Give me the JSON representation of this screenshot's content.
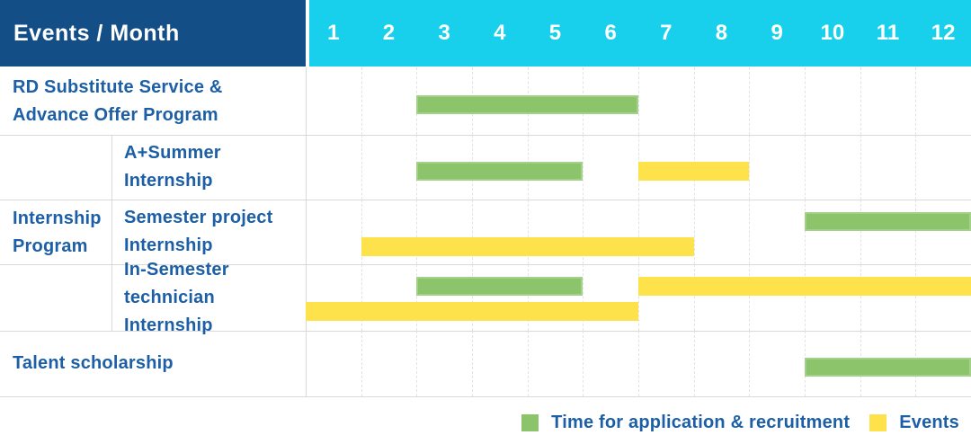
{
  "header": {
    "title": "Events / Month",
    "months": [
      "1",
      "2",
      "3",
      "4",
      "5",
      "6",
      "7",
      "8",
      "9",
      "10",
      "11",
      "12"
    ]
  },
  "colors": {
    "header_left_bg": "#144e86",
    "header_months_bg": "#18d0ec",
    "header_text": "#ffffff",
    "row_label_text": "#1d5fa6",
    "application_green": "#8bc46a",
    "events_yellow": "#fde24c",
    "grid_line": "#e3e3e3",
    "border_line": "#d9d9d9"
  },
  "chart_data": {
    "type": "gantt",
    "x_unit": "month",
    "x_ticks": [
      1,
      2,
      3,
      4,
      5,
      6,
      7,
      8,
      9,
      10,
      11,
      12
    ],
    "x_range": [
      1,
      12
    ],
    "grid": true,
    "legend_position": "bottom-right",
    "legend": [
      {
        "key": "application",
        "label": "Time for application & recruitment",
        "color": "#8bc46a"
      },
      {
        "key": "event",
        "label": "Events",
        "color": "#fde24c"
      }
    ],
    "groups": [
      {
        "id": "internship-program",
        "label": "Internship Program",
        "label_lines": [
          "Internship",
          "Program"
        ],
        "rows": [
          "a-plus-summer-internship",
          "semester-project-internship",
          "in-semester-technician-internship"
        ]
      }
    ],
    "rows": [
      {
        "id": "rd-substitute-service",
        "label": "RD Substitute Service & Advance Offer Program",
        "label_lines": [
          "RD Substitute Service &",
          "Advance Offer Program"
        ],
        "group": null,
        "lanes": 1,
        "bars": [
          {
            "kind": "application",
            "start_month": 3,
            "end_month": 6,
            "lane": 0
          }
        ]
      },
      {
        "id": "a-plus-summer-internship",
        "label": "A+Summer Internship",
        "label_lines": [
          "A+Summer",
          "Internship"
        ],
        "group": "internship-program",
        "lanes": 1,
        "bars": [
          {
            "kind": "application",
            "start_month": 3,
            "end_month": 5,
            "lane": 0
          },
          {
            "kind": "event",
            "start_month": 7,
            "end_month": 8,
            "lane": 0
          }
        ]
      },
      {
        "id": "semester-project-internship",
        "label": "Semester project Internship",
        "label_lines": [
          "Semester project",
          "Internship"
        ],
        "group": "internship-program",
        "lanes": 2,
        "bars": [
          {
            "kind": "application",
            "start_month": 10,
            "end_month": 12,
            "lane": 0
          },
          {
            "kind": "event",
            "start_month": 2,
            "end_month": 7,
            "lane": 1
          }
        ]
      },
      {
        "id": "in-semester-technician-internship",
        "label": "In-Semester technician Internship",
        "label_lines": [
          "In-Semester",
          "technician Internship"
        ],
        "group": "internship-program",
        "lanes": 2,
        "bars": [
          {
            "kind": "application",
            "start_month": 3,
            "end_month": 5,
            "lane": 0
          },
          {
            "kind": "event",
            "start_month": 7,
            "end_month": 12,
            "lane": 0
          },
          {
            "kind": "event",
            "start_month": 1,
            "end_month": 6,
            "lane": 1
          }
        ]
      },
      {
        "id": "talent-scholarship",
        "label": "Talent scholarship",
        "label_lines": [
          "Talent scholarship"
        ],
        "group": null,
        "lanes": 1,
        "bars": [
          {
            "kind": "application",
            "start_month": 10,
            "end_month": 12,
            "lane": 0
          }
        ]
      }
    ]
  }
}
